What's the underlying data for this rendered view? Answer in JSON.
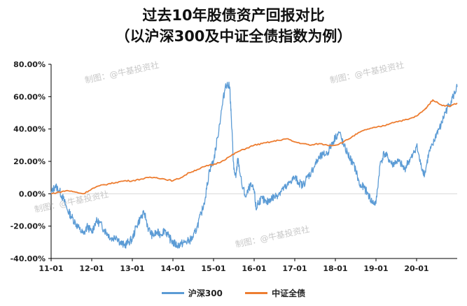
{
  "title": "过去10年股债资产回报对比",
  "subtitle": "（以沪深300及中证全债指数为例）",
  "watermark": "制图：@牛基投资社",
  "chart_data": {
    "type": "line",
    "ylim": [
      -40,
      80
    ],
    "y_ticks": [
      "80.00%",
      "60.00%",
      "40.00%",
      "20.00%",
      "0.00%",
      "-20.00%",
      "-40.00%"
    ],
    "y_tick_values": [
      80,
      60,
      40,
      20,
      0,
      -20,
      -40
    ],
    "x_ticks": [
      "11-01",
      "12-01",
      "13-01",
      "14-01",
      "15-01",
      "16-01",
      "17-01",
      "18-01",
      "19-01",
      "20-01"
    ],
    "x_tick_values": [
      2011.0,
      2012.0,
      2013.0,
      2014.0,
      2015.0,
      2016.0,
      2017.0,
      2018.0,
      2019.0,
      2020.0
    ],
    "xlim": [
      2011.0,
      2021.0
    ],
    "series": [
      {
        "name": "沪深300",
        "color": "#5b9bd5",
        "x": [
          2011.0,
          2011.1,
          2011.2,
          2011.3,
          2011.4,
          2011.5,
          2011.6,
          2011.7,
          2011.8,
          2011.9,
          2012.0,
          2012.1,
          2012.2,
          2012.3,
          2012.4,
          2012.5,
          2012.6,
          2012.7,
          2012.8,
          2012.9,
          2013.0,
          2013.1,
          2013.2,
          2013.3,
          2013.4,
          2013.5,
          2013.6,
          2013.7,
          2013.8,
          2013.9,
          2014.0,
          2014.1,
          2014.2,
          2014.3,
          2014.4,
          2014.5,
          2014.6,
          2014.7,
          2014.8,
          2014.9,
          2015.0,
          2015.1,
          2015.2,
          2015.3,
          2015.4,
          2015.45,
          2015.5,
          2015.55,
          2015.6,
          2015.7,
          2015.8,
          2015.9,
          2016.0,
          2016.05,
          2016.1,
          2016.2,
          2016.3,
          2016.4,
          2016.5,
          2016.6,
          2016.7,
          2016.8,
          2016.9,
          2017.0,
          2017.1,
          2017.2,
          2017.3,
          2017.4,
          2017.5,
          2017.6,
          2017.7,
          2017.8,
          2017.9,
          2018.0,
          2018.1,
          2018.2,
          2018.3,
          2018.4,
          2018.5,
          2018.6,
          2018.7,
          2018.8,
          2018.9,
          2019.0,
          2019.1,
          2019.2,
          2019.3,
          2019.4,
          2019.5,
          2019.6,
          2019.7,
          2019.8,
          2019.9,
          2020.0,
          2020.1,
          2020.2,
          2020.3,
          2020.4,
          2020.5,
          2020.6,
          2020.7,
          2020.8,
          2020.9,
          2021.0
        ],
        "values": [
          0,
          5,
          2,
          -3,
          -10,
          -14,
          -18,
          -22,
          -25,
          -20,
          -24,
          -17,
          -18,
          -22,
          -25,
          -28,
          -26,
          -30,
          -32,
          -30,
          -28,
          -20,
          -15,
          -12,
          -22,
          -26,
          -24,
          -25,
          -22,
          -27,
          -30,
          -32,
          -31,
          -30,
          -29,
          -27,
          -20,
          -12,
          -2,
          15,
          20,
          35,
          52,
          68,
          66,
          40,
          15,
          10,
          22,
          5,
          -2,
          5,
          2,
          -10,
          -5,
          -3,
          -6,
          -3,
          -2,
          0,
          3,
          4,
          8,
          10,
          7,
          5,
          10,
          13,
          18,
          22,
          24,
          25,
          30,
          35,
          38,
          30,
          25,
          20,
          15,
          5,
          4,
          0,
          -5,
          -6,
          18,
          25,
          22,
          18,
          20,
          19,
          15,
          20,
          23,
          30,
          18,
          12,
          25,
          30,
          38,
          42,
          50,
          55,
          60,
          66
        ]
      },
      {
        "name": "中证全债",
        "color": "#ed7d31",
        "x": [
          2011.0,
          2011.2,
          2011.4,
          2011.6,
          2011.8,
          2012.0,
          2012.2,
          2012.4,
          2012.6,
          2012.8,
          2013.0,
          2013.2,
          2013.4,
          2013.6,
          2013.8,
          2014.0,
          2014.2,
          2014.4,
          2014.6,
          2014.8,
          2015.0,
          2015.2,
          2015.4,
          2015.6,
          2015.8,
          2016.0,
          2016.2,
          2016.4,
          2016.6,
          2016.8,
          2017.0,
          2017.2,
          2017.4,
          2017.6,
          2017.8,
          2018.0,
          2018.2,
          2018.4,
          2018.6,
          2018.8,
          2019.0,
          2019.2,
          2019.4,
          2019.6,
          2019.8,
          2020.0,
          2020.2,
          2020.3,
          2020.4,
          2020.6,
          2020.8,
          2021.0
        ],
        "values": [
          0,
          1,
          2,
          1,
          0,
          3,
          5,
          6,
          7,
          8,
          8,
          9,
          10,
          10,
          9,
          8,
          10,
          13,
          15,
          17,
          18,
          20,
          23,
          26,
          28,
          30,
          31,
          32,
          33,
          34,
          32,
          31,
          30,
          31,
          30,
          30,
          32,
          35,
          38,
          40,
          41,
          42,
          44,
          45,
          46,
          48,
          52,
          55,
          58,
          55,
          54,
          56
        ]
      }
    ]
  }
}
